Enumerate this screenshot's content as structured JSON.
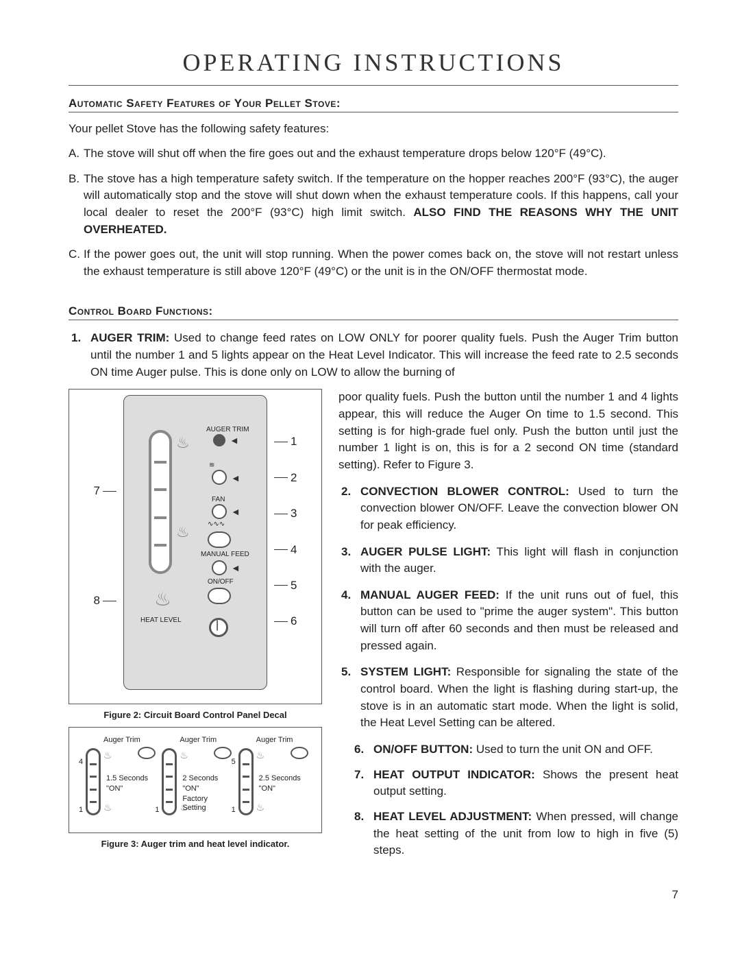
{
  "title": "Operating Instructions",
  "section1_head": "Automatic Safety Features of Your Pellet Stove:",
  "intro": "Your pellet Stove has the following safety features:",
  "abc": [
    {
      "marker": "A.",
      "html": "The stove will shut off when the fire goes out and the exhaust temperature drops below 120°F (49°C)."
    },
    {
      "marker": "B.",
      "html": "The stove has a high temperature safety switch. If the temperature on the hopper reaches 200°F (93°C), the auger will automatically stop and the stove will shut down when the exhaust temperature cools.  If this happens, call your local dealer to reset the 200°F (93°C) high limit switch. <b>ALSO FIND THE REASONS WHY THE UNIT OVERHEATED.</b>"
    },
    {
      "marker": "C.",
      "html": "If the power goes out, the unit will stop running. When the power comes back on, the stove will not restart unless the exhaust temperature is still above 120°F (49°C) or the unit is in the ON/OFF thermostat mode."
    }
  ],
  "section2_head": "Control Board Functions:",
  "item1": {
    "marker": "1.",
    "lead": "AUGER TRIM:",
    "body_top": " Used to change feed rates on LOW ONLY for poorer quality fuels. Push the Auger Trim button until the number 1 and 5 lights appear on the Heat Level Indicator.  This will increase the feed rate to 2.5 seconds ON time Auger pulse.  This is done only on LOW to allow the burning of",
    "body_right": "poor quality fuels.  Push the button until the number 1 and 4 lights appear, this will reduce the Auger On time to 1.5 second.  This setting is for high-grade fuel only.  Push the button until just the number 1 light is on, this is for a 2 second ON time (standard setting). Refer to Figure 3."
  },
  "items_right": [
    {
      "marker": "2.",
      "lead": "CONVECTION BLOWER CONTROL:",
      "body": " Used to turn the convection blower ON/OFF.  Leave the convection blower ON for peak efficiency."
    },
    {
      "marker": "3.",
      "lead": "AUGER PULSE LIGHT:",
      "body": " This light will flash in conjunction with the auger."
    },
    {
      "marker": "4.",
      "lead": "MANUAL AUGER FEED:",
      "body": " If the unit runs out of fuel, this button can be used to \"prime the auger system\".  This button will turn off after 60 seconds and then must be released and pressed again."
    },
    {
      "marker": "5.",
      "lead": "SYSTEM LIGHT:",
      "body": " Responsible for signaling the state of the control board. When the light is flashing during start-up, the stove is in an automatic start mode.  When the light is solid, the Heat Level Setting can be altered."
    }
  ],
  "items_bottom_right": [
    {
      "marker": "6.",
      "lead": "ON/OFF BUTTON:",
      "body": " Used to turn the unit ON and OFF."
    },
    {
      "marker": "7.",
      "lead": "HEAT OUTPUT INDICATOR:",
      "body": " Shows the present heat output setting."
    },
    {
      "marker": "8.",
      "lead": "HEAT LEVEL ADJUSTMENT:",
      "body": " When pressed, will change the heat setting of the unit from low to high in five (5) steps."
    }
  ],
  "fig2_caption": "Figure 2: Circuit Board Control Panel Decal",
  "fig3_caption": "Figure 3: Auger trim  and heat level indicator.",
  "panel": {
    "labels": {
      "auger_trim": "AUGER TRIM",
      "fan": "FAN",
      "manual_feed": "MANUAL FEED",
      "on_off": "ON/OFF",
      "heat_level": "HEAT LEVEL"
    },
    "callouts_left": [
      "7",
      "8"
    ],
    "callouts_right": [
      "1",
      "2",
      "3",
      "4",
      "5",
      "6"
    ]
  },
  "fig3": {
    "heading": "Auger Trim",
    "items": [
      {
        "lit": "4",
        "base": "1",
        "text1": "1.5 Seconds",
        "text2": "\"ON\""
      },
      {
        "lit": "",
        "base": "1",
        "text1": "2 Seconds",
        "text2": "\"ON\"",
        "text3": "Factory Setting"
      },
      {
        "lit": "5",
        "base": "1",
        "text1": "2.5 Seconds",
        "text2": "\"ON\""
      }
    ]
  },
  "page_number": "7"
}
